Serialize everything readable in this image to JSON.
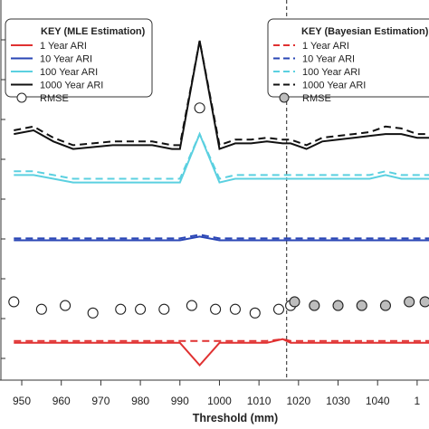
{
  "chart_data": {
    "type": "line",
    "xlabel": "Threshold (mm)",
    "ylabel": "",
    "x_ticks": [
      "950",
      "960",
      "970",
      "980",
      "990",
      "1000",
      "1010",
      "1020",
      "1030",
      "1040",
      "1"
    ],
    "xlim": [
      944.5,
      1053
    ],
    "ylim": [
      0,
      100
    ],
    "vline_x": 1017,
    "x": [
      948,
      953,
      958,
      963,
      968,
      973,
      978,
      983,
      988,
      990,
      995,
      1000,
      1004,
      1008,
      1012,
      1016,
      1018,
      1022,
      1026,
      1030,
      1034,
      1038,
      1042,
      1046,
      1050,
      1053
    ],
    "legend_mle": {
      "title": "KEY (MLE Estimation)",
      "items": [
        "1 Year ARI",
        "10 Year ARI",
        "100 Year ARI",
        "1000 Year ARI",
        "RMSE"
      ]
    },
    "legend_bayes": {
      "title": "KEY (Bayesian Estimation)",
      "items": [
        "1 Year ARI",
        "10 Year ARI",
        "100 Year ARI",
        "1000 Year ARI",
        "RMSE"
      ]
    },
    "series": [
      {
        "name": "1 Year ARI",
        "method": "MLE",
        "color": "#e03131",
        "dash": "solid",
        "values": [
          10,
          10,
          10,
          10,
          10,
          10,
          10,
          10,
          10,
          10,
          4,
          10,
          10,
          10,
          10,
          11,
          10,
          10,
          10,
          10,
          10,
          10,
          10,
          10,
          10,
          10
        ]
      },
      {
        "name": "1 Year ARI",
        "method": "Bayesian",
        "color": "#e03131",
        "dash": "dashed",
        "values": [
          10.5,
          10.5,
          10.5,
          10.5,
          10.5,
          10.5,
          10.5,
          10.5,
          10.5,
          10.5,
          10.5,
          10.5,
          10.5,
          10.5,
          10.5,
          11,
          10.5,
          10.5,
          10.5,
          10.5,
          10.5,
          10.5,
          10.5,
          10.5,
          10.5,
          10.5
        ]
      },
      {
        "name": "10 Year ARI",
        "method": "MLE",
        "color": "#2945b5",
        "dash": "solid",
        "values": [
          37.5,
          37.5,
          37.5,
          37.5,
          37.5,
          37.5,
          37.5,
          37.5,
          37.5,
          37.5,
          38.5,
          37.5,
          37.5,
          37.5,
          37.5,
          37.5,
          37.5,
          37.5,
          37.5,
          37.5,
          37.5,
          37.5,
          37.5,
          37.5,
          37.5,
          37.5
        ]
      },
      {
        "name": "10 Year ARI",
        "method": "Bayesian",
        "color": "#2945b5",
        "dash": "dashed",
        "values": [
          38,
          38,
          38,
          38,
          38,
          38,
          38,
          38,
          38,
          38,
          39,
          38,
          38,
          38,
          38,
          38,
          38,
          38,
          38,
          38,
          38,
          38,
          38,
          38,
          38,
          38
        ]
      },
      {
        "name": "100 Year ARI",
        "method": "MLE",
        "color": "#5bd0e0",
        "dash": "solid",
        "values": [
          55,
          55,
          54,
          53,
          53,
          53,
          53,
          53,
          53,
          53,
          66,
          53,
          54,
          54,
          54,
          54,
          54,
          54,
          54,
          54,
          54,
          54,
          55,
          54,
          54,
          54
        ]
      },
      {
        "name": "100 Year ARI",
        "method": "Bayesian",
        "color": "#5bd0e0",
        "dash": "dashed",
        "values": [
          56,
          56,
          55,
          54,
          54,
          54,
          54,
          54,
          54,
          54,
          66,
          54,
          55,
          55,
          55,
          55,
          55,
          55,
          55,
          55,
          55,
          55,
          56,
          55,
          55,
          55
        ]
      },
      {
        "name": "1000 Year ARI",
        "method": "MLE",
        "color": "#111111",
        "dash": "solid",
        "values": [
          66,
          67,
          64,
          62,
          62.5,
          63,
          63,
          63,
          62,
          62,
          91,
          62,
          63.5,
          63.5,
          64,
          63.5,
          63.5,
          62,
          64,
          64.5,
          65,
          65.5,
          66,
          66,
          65,
          65
        ]
      },
      {
        "name": "1000 Year ARI",
        "method": "Bayesian",
        "color": "#111111",
        "dash": "dashed",
        "values": [
          67,
          68,
          65,
          63,
          63.5,
          64,
          64,
          64,
          63,
          63,
          91,
          63,
          64.5,
          64.5,
          65,
          64.5,
          64.5,
          63,
          65,
          65.5,
          66,
          66.5,
          68,
          67.5,
          66,
          66
        ]
      }
    ],
    "rmse_mle": {
      "x": [
        948,
        955,
        961,
        968,
        975,
        980,
        986,
        993,
        995,
        999,
        1004,
        1009,
        1015,
        1018
      ],
      "values": [
        21,
        19,
        20,
        18,
        19,
        19,
        19,
        20,
        73,
        19,
        19,
        18,
        19,
        20
      ]
    },
    "rmse_bayes": {
      "x": [
        1019,
        1024,
        1030,
        1036,
        1042,
        1048,
        1052
      ],
      "values": [
        21,
        20,
        20,
        20,
        20,
        21,
        21
      ]
    },
    "grid": false
  }
}
